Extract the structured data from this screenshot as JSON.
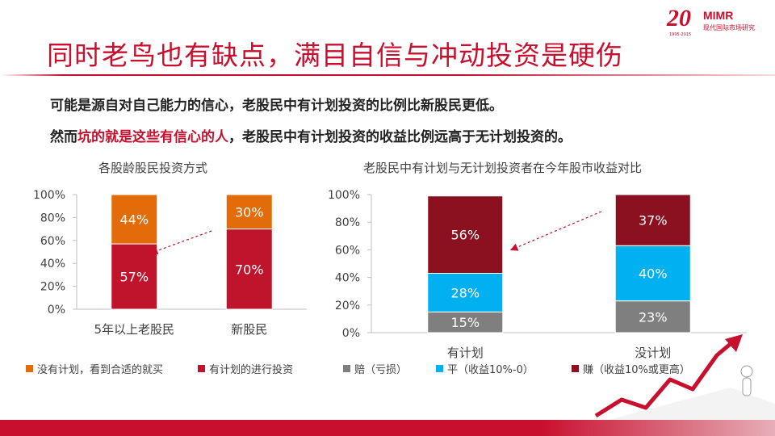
{
  "slide": {
    "title": "同时老鸟也有缺点，满目自信与冲动投资是硬伤",
    "line1": "可能是源自对自己能力的信心，老股民中有计划投资的比例比新股民更低。",
    "line2_pre": "然而",
    "line2_highlight": "坑的就是这些有信心的人",
    "line2_post": "，老股民中有计划投资的收益比例远高于无计划投资的。"
  },
  "logo": {
    "number_text": "20",
    "brand": "MIMR",
    "subtitle": "现代国际市场研究",
    "years": "1995-2015"
  },
  "colors": {
    "orange": "#e36c0a",
    "crimson": "#c0142c",
    "gray": "#7f7f7f",
    "sky": "#00b0f0",
    "maroon": "#8b1020",
    "accent": "#c8102e"
  },
  "chart_data": [
    {
      "type": "bar",
      "stacked": true,
      "title": "各股龄股民投资方式",
      "categories": [
        "5年以上老股民",
        "新股民"
      ],
      "series": [
        {
          "name": "有计划的进行投资",
          "values": [
            57,
            70
          ],
          "labels": [
            "57%",
            "70%"
          ],
          "color": "#c0142c"
        },
        {
          "name": "没有计划，看到合适的就买",
          "values": [
            44,
            30
          ],
          "labels": [
            "44%",
            "30%"
          ],
          "color": "#e36c0a"
        }
      ],
      "ylim": [
        0,
        100
      ],
      "yticks": [
        "0%",
        "20%",
        "40%",
        "60%",
        "80%",
        "100%"
      ],
      "legend": "bottom"
    },
    {
      "type": "bar",
      "stacked": true,
      "title": "老股民中有计划与无计划投资者在今年股市收益对比",
      "categories": [
        "有计划",
        "没计划"
      ],
      "series": [
        {
          "name": "赔（亏损）",
          "values": [
            15,
            23
          ],
          "labels": [
            "15%",
            "23%"
          ],
          "color": "#7f7f7f"
        },
        {
          "name": "平（收益10%-0）",
          "values": [
            28,
            40
          ],
          "labels": [
            "28%",
            "40%"
          ],
          "color": "#00b0f0"
        },
        {
          "name": "赚（收益10%或更高）",
          "values": [
            56,
            37
          ],
          "labels": [
            "56%",
            "37%"
          ],
          "color": "#8b1020"
        }
      ],
      "ylim": [
        0,
        100
      ],
      "yticks": [
        "0%",
        "20%",
        "40%",
        "60%",
        "80%",
        "100%"
      ],
      "legend": "bottom"
    }
  ]
}
